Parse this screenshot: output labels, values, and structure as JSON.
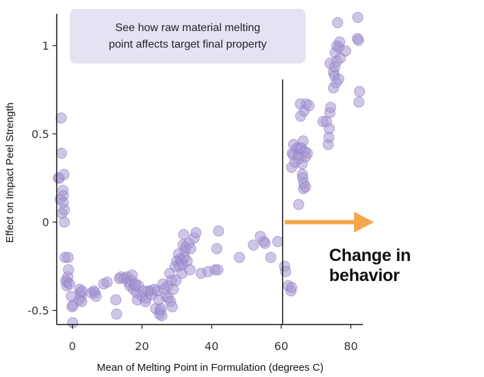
{
  "annotation": {
    "line1": "See how raw material melting",
    "line2": "point affects target final property"
  },
  "callout": "Change in behavior",
  "colors": {
    "point_fill": "#a797d2",
    "point_stroke": "#8b79c4",
    "arrow": "#f4a64c",
    "annotation_bg": "#e6e2f4"
  },
  "chart_data": {
    "type": "scatter",
    "title": "",
    "xlabel": "Mean of Melting Point in Formulation (degrees C)",
    "ylabel": "Effect on Impact Peel Strength",
    "xlim": [
      -4.5,
      83.5
    ],
    "ylim": [
      -0.58,
      1.18
    ],
    "xticks": [
      0,
      20,
      40,
      60,
      80
    ],
    "yticks": [
      -0.5,
      0,
      0.5,
      1
    ],
    "ytick_labels": [
      "-0.5",
      "0",
      "0.5",
      "1"
    ],
    "grid": false,
    "threshold_x": 60.4,
    "series": [
      {
        "name": "",
        "points": [
          [
            -4.0,
            0.25
          ],
          [
            -3.8,
            0.25
          ],
          [
            -3.5,
            0.13
          ],
          [
            -3.2,
            0.59
          ],
          [
            -3.1,
            0.39
          ],
          [
            -3.0,
            0.05
          ],
          [
            -2.7,
            0.18
          ],
          [
            -2.6,
            0.15
          ],
          [
            -2.6,
            0.11
          ],
          [
            -2.4,
            0.27
          ],
          [
            -2.3,
            0.07
          ],
          [
            -2.3,
            0.0
          ],
          [
            -2.1,
            -0.2
          ],
          [
            -1.9,
            -0.33
          ],
          [
            -1.6,
            -0.36
          ],
          [
            -1.5,
            -0.34
          ],
          [
            -1.3,
            -0.31
          ],
          [
            -1.2,
            -0.2
          ],
          [
            -1.1,
            -0.27
          ],
          [
            -0.8,
            -0.35
          ],
          [
            -0.3,
            -0.42
          ],
          [
            -0.1,
            -0.48
          ],
          [
            0.1,
            -0.57
          ],
          [
            0.2,
            -0.47
          ],
          [
            2.0,
            -0.44
          ],
          [
            2.1,
            -0.38
          ],
          [
            2.3,
            -0.4
          ],
          [
            2.5,
            -0.42
          ],
          [
            2.7,
            -0.45
          ],
          [
            2.8,
            -0.39
          ],
          [
            5.5,
            -0.4
          ],
          [
            6.2,
            -0.39
          ],
          [
            6.5,
            -0.4
          ],
          [
            6.8,
            -0.42
          ],
          [
            9.0,
            -0.35
          ],
          [
            10.0,
            -0.34
          ],
          [
            12.5,
            -0.44
          ],
          [
            12.7,
            -0.52
          ],
          [
            13.5,
            -0.32
          ],
          [
            14.0,
            -0.31
          ],
          [
            15.0,
            -0.32
          ],
          [
            15.8,
            -0.31
          ],
          [
            16.2,
            -0.34
          ],
          [
            16.5,
            -0.36
          ],
          [
            17.0,
            -0.33
          ],
          [
            17.2,
            -0.3
          ],
          [
            17.5,
            -0.38
          ],
          [
            18.0,
            -0.36
          ],
          [
            18.2,
            -0.35
          ],
          [
            18.5,
            -0.4
          ],
          [
            18.7,
            -0.44
          ],
          [
            19.0,
            -0.36
          ],
          [
            20.0,
            -0.42
          ],
          [
            20.5,
            -0.39
          ],
          [
            21.0,
            -0.45
          ],
          [
            21.2,
            -0.43
          ],
          [
            21.8,
            -0.39
          ],
          [
            22.5,
            -0.39
          ],
          [
            22.8,
            -0.41
          ],
          [
            23.5,
            -0.38
          ],
          [
            23.9,
            -0.49
          ],
          [
            24.5,
            -0.39
          ],
          [
            24.8,
            -0.44
          ],
          [
            25.0,
            -0.52
          ],
          [
            25.2,
            -0.5
          ],
          [
            25.5,
            -0.49
          ],
          [
            25.7,
            -0.53
          ],
          [
            26.0,
            -0.35
          ],
          [
            26.4,
            -0.38
          ],
          [
            27.0,
            -0.42
          ],
          [
            27.5,
            -0.36
          ],
          [
            27.6,
            -0.43
          ],
          [
            28.0,
            -0.29
          ],
          [
            28.2,
            -0.45
          ],
          [
            28.5,
            -0.33
          ],
          [
            28.7,
            -0.48
          ],
          [
            29.0,
            -0.38
          ],
          [
            29.5,
            -0.25
          ],
          [
            29.8,
            -0.33
          ],
          [
            30.0,
            -0.22
          ],
          [
            30.5,
            -0.18
          ],
          [
            30.8,
            -0.25
          ],
          [
            31.0,
            -0.21
          ],
          [
            31.4,
            -0.22
          ],
          [
            31.5,
            -0.29
          ],
          [
            31.7,
            -0.24
          ],
          [
            31.8,
            -0.13
          ],
          [
            32.0,
            -0.07
          ],
          [
            32.2,
            -0.2
          ],
          [
            32.4,
            -0.16
          ],
          [
            32.6,
            -0.14
          ],
          [
            33.0,
            -0.22
          ],
          [
            33.5,
            -0.12
          ],
          [
            33.8,
            -0.27
          ],
          [
            34.0,
            -0.15
          ],
          [
            35.0,
            -0.09
          ],
          [
            35.5,
            -0.06
          ],
          [
            37.0,
            -0.29
          ],
          [
            39.0,
            -0.28
          ],
          [
            41.0,
            -0.27
          ],
          [
            41.5,
            -0.15
          ],
          [
            41.8,
            -0.27
          ],
          [
            42.0,
            -0.05
          ],
          [
            48.0,
            -0.2
          ],
          [
            52.0,
            -0.13
          ],
          [
            54.0,
            -0.08
          ],
          [
            55.0,
            -0.11
          ],
          [
            55.4,
            -0.12
          ],
          [
            57.0,
            -0.2
          ],
          [
            59.0,
            -0.11
          ],
          [
            61.0,
            -0.25
          ],
          [
            61.3,
            -0.28
          ],
          [
            62.0,
            -0.36
          ],
          [
            62.8,
            -0.39
          ],
          [
            63.0,
            -0.37
          ],
          [
            63.0,
            0.31
          ],
          [
            63.2,
            0.39
          ],
          [
            63.5,
            0.38
          ],
          [
            63.6,
            0.44
          ],
          [
            64.0,
            0.34
          ],
          [
            64.5,
            0.42
          ],
          [
            65.0,
            0.38
          ],
          [
            65.0,
            0.1
          ],
          [
            65.1,
            0.36
          ],
          [
            65.3,
            0.42
          ],
          [
            65.5,
            0.67
          ],
          [
            65.6,
            0.6
          ],
          [
            65.8,
            0.42
          ],
          [
            66.0,
            0.33
          ],
          [
            66.1,
            0.27
          ],
          [
            66.2,
            0.25
          ],
          [
            66.3,
            0.46
          ],
          [
            66.4,
            0.19
          ],
          [
            66.5,
            0.22
          ],
          [
            66.6,
            0.63
          ],
          [
            66.8,
            0.4
          ],
          [
            67.0,
            0.2
          ],
          [
            67.0,
            0.37
          ],
          [
            67.2,
            0.67
          ],
          [
            67.5,
            0.39
          ],
          [
            68.0,
            0.66
          ],
          [
            72.0,
            0.57
          ],
          [
            73.0,
            0.57
          ],
          [
            73.5,
            0.44
          ],
          [
            73.7,
            0.48
          ],
          [
            73.8,
            0.53
          ],
          [
            74.0,
            0.62
          ],
          [
            74.0,
            0.9
          ],
          [
            74.2,
            0.65
          ],
          [
            75.0,
            0.76
          ],
          [
            75.0,
            0.85
          ],
          [
            75.3,
            0.83
          ],
          [
            75.4,
            0.88
          ],
          [
            75.5,
            0.96
          ],
          [
            75.8,
            0.79
          ],
          [
            76.0,
            1.0
          ],
          [
            76.0,
            0.91
          ],
          [
            76.2,
            1.13
          ],
          [
            76.5,
            0.81
          ],
          [
            76.6,
            0.99
          ],
          [
            76.8,
            1.02
          ],
          [
            77.0,
            0.93
          ],
          [
            78.5,
            0.97
          ],
          [
            81.9,
            1.04
          ],
          [
            82.0,
            1.16
          ],
          [
            82.2,
            1.03
          ],
          [
            82.3,
            0.68
          ],
          [
            82.5,
            0.74
          ]
        ]
      }
    ]
  }
}
